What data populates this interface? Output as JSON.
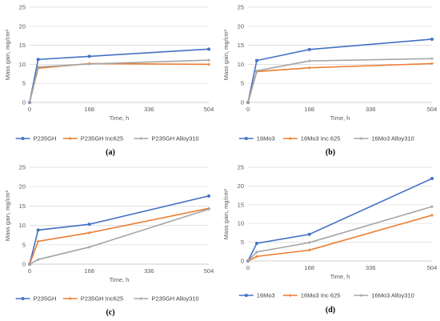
{
  "colors": {
    "series_a": "#4472C4",
    "series_b": "#ED7D31",
    "series_c": "#A5A5A5",
    "grid": "#D9D9D9",
    "axis": "#BFBFBF"
  },
  "chart_data": [
    {
      "type": "line",
      "panel_label": "(a)",
      "xlabel": "Time, h",
      "ylabel": "Mass gain, mg/cm²",
      "x": [
        0,
        24,
        168,
        504
      ],
      "xticks": [
        "0",
        "168",
        "336",
        "504"
      ],
      "xlim": [
        0,
        504
      ],
      "ylim": [
        0,
        25
      ],
      "yticks": [
        "0",
        "5",
        "10",
        "15",
        "20",
        "25"
      ],
      "grid": true,
      "legend": "bottom",
      "series": [
        {
          "name": "P235GH",
          "values": [
            0,
            11.3,
            12.1,
            14.0
          ]
        },
        {
          "name": "P235GH Inc625",
          "values": [
            0,
            9.0,
            10.2,
            10.0
          ]
        },
        {
          "name": "P235GH Alloy310",
          "values": [
            0,
            9.3,
            10.1,
            11.1
          ]
        }
      ]
    },
    {
      "type": "line",
      "panel_label": "(b)",
      "xlabel": "Time, h",
      "ylabel": "Mass gain, mg/cm²",
      "x": [
        0,
        24,
        168,
        504
      ],
      "xticks": [
        "0",
        "168",
        "336",
        "504"
      ],
      "xlim": [
        0,
        504
      ],
      "ylim": [
        0,
        25
      ],
      "yticks": [
        "0",
        "5",
        "10",
        "15",
        "20",
        "25"
      ],
      "grid": true,
      "legend": "bottom",
      "series": [
        {
          "name": "16Mo3",
          "values": [
            0,
            11.0,
            13.9,
            16.6
          ]
        },
        {
          "name": "16Mo3 Inc 625",
          "values": [
            0,
            8.1,
            9.1,
            10.2
          ]
        },
        {
          "name": "16Mo3 Alloy310",
          "values": [
            0,
            8.3,
            10.9,
            11.5
          ]
        }
      ]
    },
    {
      "type": "line",
      "panel_label": "(c)",
      "xlabel": "Time, h",
      "ylabel": "Mass gain, mg/cm²",
      "x": [
        0,
        24,
        168,
        504
      ],
      "xticks": [
        "0",
        "168",
        "336",
        "504"
      ],
      "xlim": [
        0,
        504
      ],
      "ylim": [
        0,
        25
      ],
      "yticks": [
        "0",
        "5",
        "10",
        "15",
        "20",
        "25"
      ],
      "grid": true,
      "legend": "bottom",
      "series": [
        {
          "name": "P235GH",
          "values": [
            0,
            8.8,
            10.3,
            17.6
          ]
        },
        {
          "name": "P235GH Inc625",
          "values": [
            0,
            5.9,
            8.1,
            14.4
          ]
        },
        {
          "name": "P235GH Alloy310",
          "values": [
            0,
            1.2,
            4.4,
            14.2
          ]
        }
      ]
    },
    {
      "type": "line",
      "panel_label": "(d)",
      "xlabel": "Time, h",
      "ylabel": "Mass gain, mg/cm²",
      "x": [
        0,
        24,
        168,
        504
      ],
      "xticks": [
        "0",
        "168",
        "336",
        "504"
      ],
      "xlim": [
        0,
        504
      ],
      "ylim": [
        0,
        25
      ],
      "yticks": [
        "0",
        "5",
        "10",
        "15",
        "20",
        "25"
      ],
      "grid": true,
      "legend": "bottom",
      "series": [
        {
          "name": "16Mo3",
          "values": [
            0,
            4.7,
            7.1,
            22.0
          ]
        },
        {
          "name": "16Mo3 Inc 625",
          "values": [
            0,
            1.2,
            2.9,
            12.2
          ]
        },
        {
          "name": "16Mo3 Alloy310",
          "values": [
            0,
            2.4,
            4.9,
            14.5
          ]
        }
      ]
    }
  ]
}
